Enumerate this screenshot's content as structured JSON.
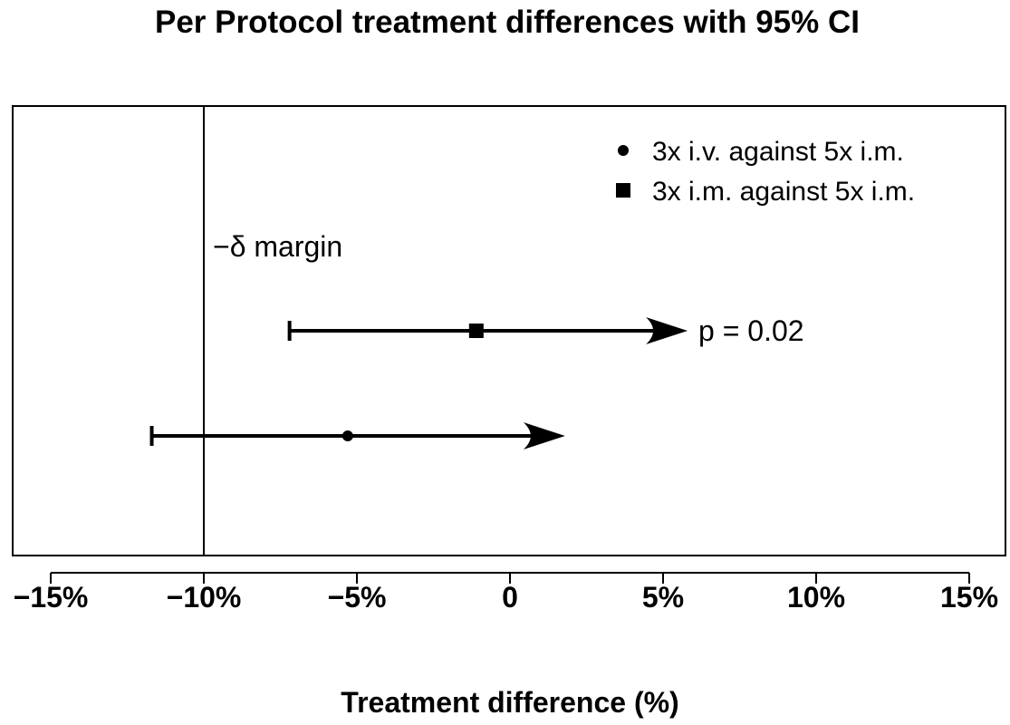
{
  "chart_data": {
    "type": "forest",
    "title": "Per Protocol treatment differences with 95% CI",
    "xlabel": "Treatment difference (%)",
    "xlim": [
      -15,
      15
    ],
    "x_ticks": [
      {
        "value": -15,
        "label": "−15%"
      },
      {
        "value": -10,
        "label": "−10%"
      },
      {
        "value": -5,
        "label": "−5%"
      },
      {
        "value": 0,
        "label": "0"
      },
      {
        "value": 5,
        "label": "5%"
      },
      {
        "value": 10,
        "label": "10%"
      },
      {
        "value": 15,
        "label": "15%"
      }
    ],
    "grid": false,
    "legend_position": "top-right",
    "margin_line": {
      "value": -10,
      "label": "−δ margin"
    },
    "series": [
      {
        "name": "3x i.v. against 5x i.m.",
        "marker": "circle",
        "estimate": -5.3,
        "ci_lower": -11.7,
        "ci_upper": 1.8,
        "upper_open": true,
        "annotation": ""
      },
      {
        "name": "3x i.m. against 5x i.m.",
        "marker": "square",
        "estimate": -1.1,
        "ci_lower": -7.2,
        "ci_upper": 5.8,
        "upper_open": true,
        "annotation": "p = 0.02"
      }
    ]
  }
}
